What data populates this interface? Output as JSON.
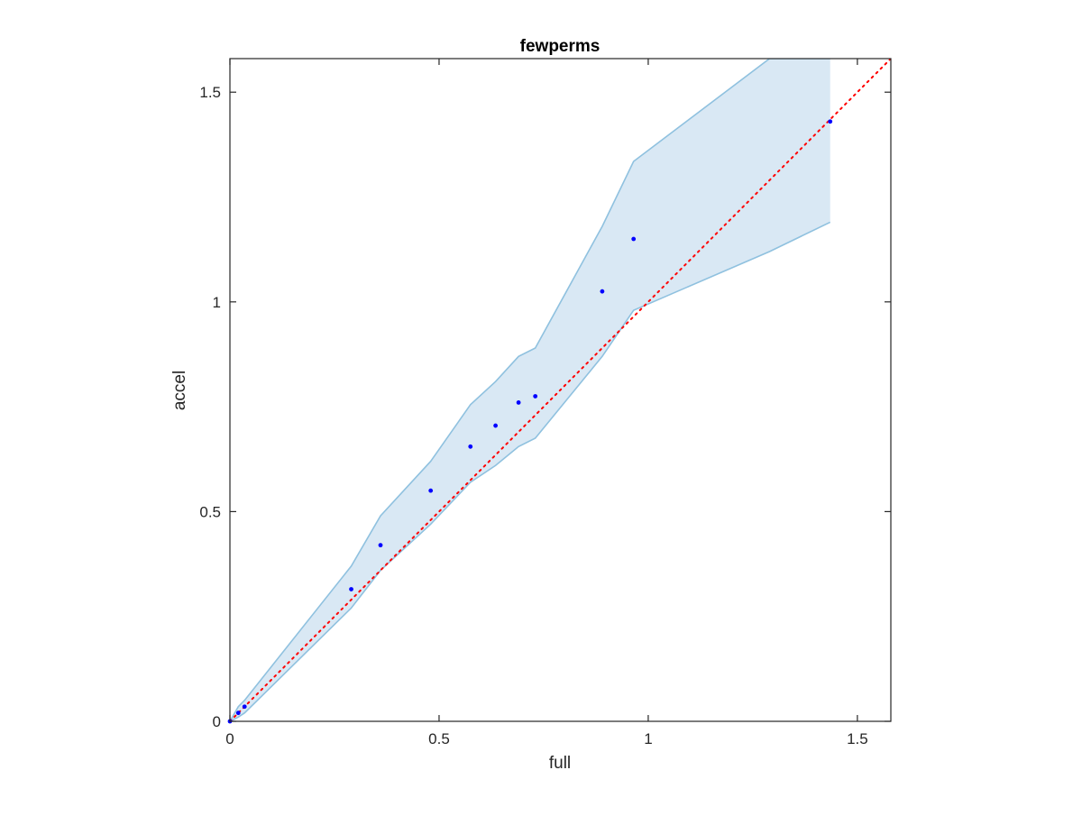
{
  "chart_data": {
    "type": "scatter",
    "title": "fewperms",
    "xlabel": "full",
    "ylabel": "accel",
    "xlim": [
      0,
      1.58
    ],
    "ylim": [
      0,
      1.58
    ],
    "xticks": [
      0,
      0.5,
      1,
      1.5
    ],
    "yticks": [
      0,
      0.5,
      1,
      1.5
    ],
    "xtick_labels": [
      "0",
      "0.5",
      "1",
      "1.5"
    ],
    "ytick_labels": [
      "0",
      "0.5",
      "1",
      "1.5"
    ],
    "grid": false,
    "box": true,
    "reference_line": {
      "style": "dotted",
      "color": "#ff0000",
      "from": [
        0,
        0
      ],
      "to": [
        1.58,
        1.58
      ]
    },
    "band": {
      "fill": "#d9e8f4",
      "edge": "#8fc1df",
      "x": [
        0,
        0.02,
        0.035,
        0.29,
        0.36,
        0.48,
        0.575,
        0.635,
        0.69,
        0.73,
        0.89,
        0.965,
        1.29,
        1.435
      ],
      "upper": [
        0,
        0.035,
        0.05,
        0.37,
        0.49,
        0.62,
        0.755,
        0.81,
        0.87,
        0.89,
        1.18,
        1.335,
        1.58,
        1.58
      ],
      "lower": [
        0,
        0.01,
        0.02,
        0.27,
        0.36,
        0.47,
        0.57,
        0.61,
        0.655,
        0.675,
        0.87,
        0.98,
        1.12,
        1.19
      ]
    },
    "series": [
      {
        "marker": "dot",
        "color": "#0000ff",
        "x": [
          0,
          0.02,
          0.035,
          0.29,
          0.36,
          0.48,
          0.575,
          0.635,
          0.69,
          0.73,
          0.89,
          0.965,
          1.435
        ],
        "y": [
          0,
          0.02,
          0.035,
          0.315,
          0.42,
          0.55,
          0.655,
          0.705,
          0.76,
          0.775,
          1.025,
          1.15,
          1.43
        ]
      }
    ]
  }
}
